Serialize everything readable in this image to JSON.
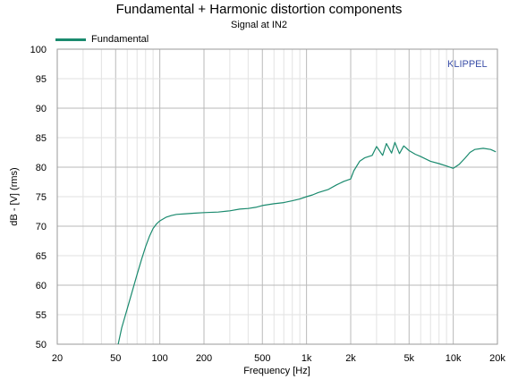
{
  "watermark": "KLIPPEL",
  "colors": {
    "series": "#1a8a6e",
    "grid_major": "#b9b9b9",
    "grid_minor": "#e2e2e2",
    "frame": "#9a9a9a",
    "watermark": "#3b4fa8"
  },
  "chart_data": {
    "type": "line",
    "title": "Fundamental + Harmonic distortion components",
    "subtitle": "Signal at IN2",
    "xlabel": "Frequency [Hz]",
    "ylabel": "dB - [V] (rms)",
    "x_scale": "log",
    "xlim": [
      20,
      20000
    ],
    "ylim": [
      50,
      100
    ],
    "x_ticks": [
      20,
      50,
      100,
      200,
      500,
      1000,
      2000,
      5000,
      10000,
      20000
    ],
    "x_tick_labels": [
      "20",
      "50",
      "100",
      "200",
      "500",
      "1k",
      "2k",
      "5k",
      "10k",
      "20k"
    ],
    "y_ticks": [
      50,
      55,
      60,
      65,
      70,
      75,
      80,
      85,
      90,
      95,
      100
    ],
    "y_tick_labels": [
      "50",
      "55",
      "60",
      "65",
      "70",
      "75",
      "80",
      "85",
      "90",
      "95",
      "100"
    ],
    "grid": true,
    "legend_position": "top-left",
    "series": [
      {
        "name": "Fundamental",
        "x": [
          52,
          55,
          60,
          65,
          70,
          75,
          80,
          85,
          90,
          95,
          100,
          110,
          120,
          130,
          150,
          170,
          200,
          250,
          300,
          350,
          400,
          450,
          500,
          600,
          700,
          800,
          900,
          1000,
          1100,
          1200,
          1400,
          1600,
          1800,
          2000,
          2100,
          2300,
          2500,
          2800,
          3000,
          3300,
          3500,
          3800,
          4000,
          4300,
          4600,
          5000,
          5500,
          6000,
          7000,
          8000,
          9000,
          10000,
          11000,
          12000,
          13000,
          14000,
          16000,
          18000,
          19500
        ],
        "y": [
          50,
          52.8,
          56,
          59,
          61.8,
          64.3,
          66.5,
          68.3,
          69.6,
          70.4,
          70.9,
          71.5,
          71.8,
          72.0,
          72.1,
          72.2,
          72.3,
          72.4,
          72.6,
          72.9,
          73.0,
          73.2,
          73.5,
          73.8,
          74.0,
          74.3,
          74.6,
          75.0,
          75.3,
          75.7,
          76.2,
          77.0,
          77.6,
          78.0,
          79.4,
          81.0,
          81.6,
          82.0,
          83.5,
          82.0,
          84.0,
          82.4,
          84.2,
          82.3,
          83.6,
          82.8,
          82.2,
          81.8,
          81.0,
          80.6,
          80.2,
          79.8,
          80.5,
          81.5,
          82.5,
          83.0,
          83.2,
          83.0,
          82.6
        ]
      }
    ]
  }
}
